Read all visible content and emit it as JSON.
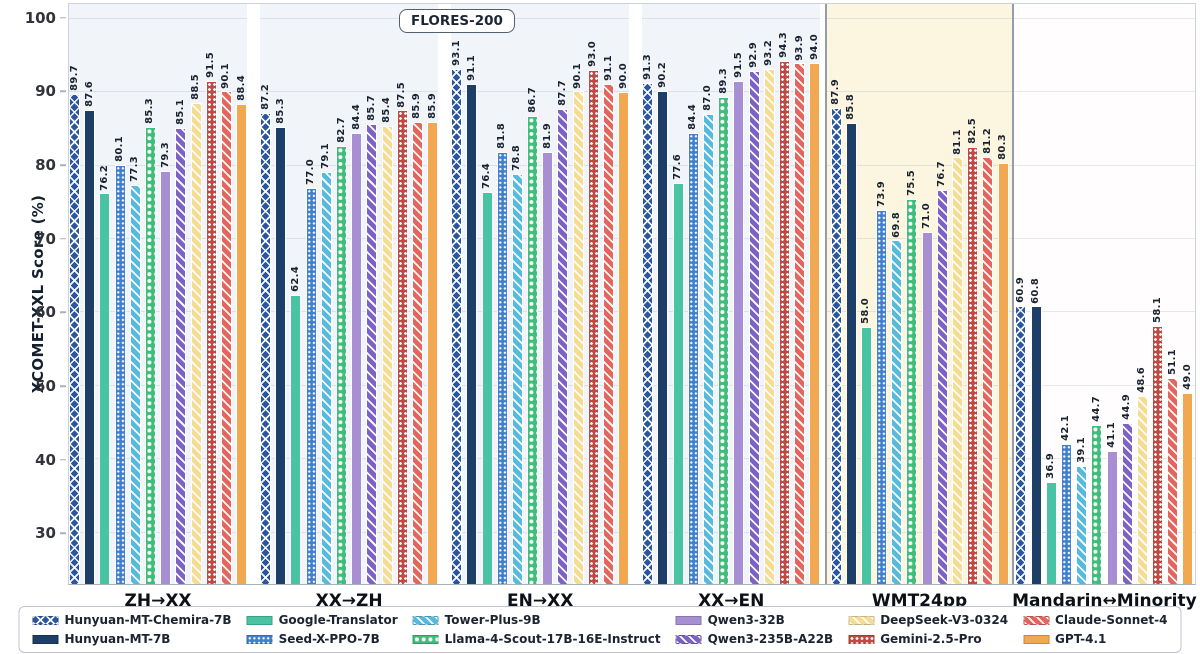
{
  "chart_data": {
    "type": "bar",
    "title": "FLORES-200",
    "ylabel": "XCOMET-XXL Score (%)",
    "ylim": [
      23,
      102
    ],
    "yticks": [
      30,
      40,
      50,
      60,
      70,
      80,
      90,
      100
    ],
    "grid": "horizontal",
    "legend_position": "bottom",
    "categories": [
      "ZH→XX",
      "XX→ZH",
      "EN→XX",
      "XX→EN",
      "WMT24pp",
      "Mandarin↔Minority"
    ],
    "sections": [
      {
        "name": "FLORES-200",
        "category_indexes": [
          0,
          1,
          2,
          3
        ],
        "background": "#f1f5fa"
      },
      {
        "name": "WMT24pp",
        "category_indexes": [
          4
        ],
        "background": "#fcf5df"
      },
      {
        "name": "Mandarin↔Minority",
        "category_indexes": [
          5
        ],
        "background": "#fffdfd"
      }
    ],
    "series": [
      {
        "name": "Hunyuan-MT-Chemira-7B",
        "color": "#2a56a0",
        "pattern": "crosshatch",
        "values": [
          89.7,
          87.2,
          93.1,
          91.3,
          87.9,
          60.9
        ]
      },
      {
        "name": "Hunyuan-MT-7B",
        "color": "#1d3e66",
        "pattern": "solid",
        "values": [
          87.6,
          85.3,
          91.1,
          90.2,
          85.8,
          60.8
        ]
      },
      {
        "name": "Google-Translator",
        "color": "#48c3a3",
        "pattern": "solid",
        "values": [
          76.2,
          62.4,
          76.4,
          77.6,
          58.0,
          36.9
        ]
      },
      {
        "name": "Seed-X-PPO-7B",
        "color": "#4180cc",
        "pattern": "dots",
        "values": [
          80.1,
          77.0,
          81.8,
          84.4,
          73.9,
          42.1
        ]
      },
      {
        "name": "Tower-Plus-9B",
        "color": "#55bade",
        "pattern": "stripes",
        "values": [
          77.3,
          79.1,
          78.8,
          87.0,
          69.8,
          39.1
        ]
      },
      {
        "name": "Llama-4-Scout-17B-16E-Instruct",
        "color": "#40bd7b",
        "pattern": "circles",
        "values": [
          85.3,
          82.7,
          86.7,
          89.3,
          75.5,
          44.7
        ]
      },
      {
        "name": "Qwen3-32B",
        "color": "#a88fd4",
        "pattern": "solid",
        "values": [
          79.3,
          84.4,
          81.9,
          91.5,
          71.0,
          41.1
        ]
      },
      {
        "name": "Qwen3-235B-A22B",
        "color": "#7d62c6",
        "pattern": "stripes",
        "values": [
          85.1,
          85.7,
          87.7,
          92.9,
          76.7,
          44.9
        ]
      },
      {
        "name": "DeepSeek-V3-0324",
        "color": "#f6dc90",
        "pattern": "stripes",
        "values": [
          88.5,
          85.4,
          90.1,
          93.2,
          81.1,
          48.6
        ]
      },
      {
        "name": "Gemini-2.5-Pro",
        "color": "#c04a43",
        "pattern": "dots-dense",
        "values": [
          91.5,
          87.5,
          93.0,
          94.3,
          82.5,
          58.1
        ]
      },
      {
        "name": "Claude-Sonnet-4",
        "color": "#e4655b",
        "pattern": "stripes",
        "values": [
          90.1,
          85.9,
          91.1,
          93.9,
          81.2,
          51.1
        ]
      },
      {
        "name": "GPT-4.1",
        "color": "#f2a851",
        "pattern": "solid",
        "values": [
          88.4,
          85.9,
          90.0,
          94.0,
          80.3,
          49.0
        ]
      }
    ]
  }
}
